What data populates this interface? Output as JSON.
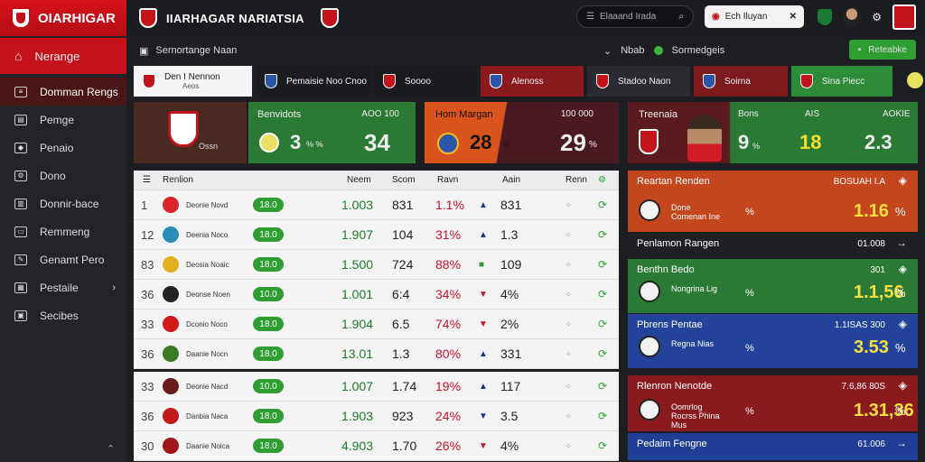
{
  "brand": {
    "title": "OIARHIGAR"
  },
  "sidebar": {
    "primary": "Nerange",
    "items": [
      {
        "label": "Domman Rengs",
        "icon": "list-icon",
        "active": true
      },
      {
        "label": "Pemge",
        "icon": "doc-icon"
      },
      {
        "label": "Penaio",
        "icon": "shield-icon"
      },
      {
        "label": "Dono",
        "icon": "gear-icon"
      },
      {
        "label": "Donnir-bace",
        "icon": "copy-icon"
      },
      {
        "label": "Remmeng",
        "icon": "card-icon"
      },
      {
        "label": "Genamt Pero",
        "icon": "pen-icon"
      },
      {
        "label": "Pestaile",
        "icon": "chart-icon",
        "chevron": true
      },
      {
        "label": "Secibes",
        "icon": "tag-icon"
      }
    ]
  },
  "topbar": {
    "title": "IIARHAGAR NARIATSIA",
    "search_placeholder": "Elaaand Irada",
    "match_label": "Ech Iluyan"
  },
  "subbar": {
    "left": "Sernortange Naan",
    "mid1": "Nbab",
    "mid2": "Sormedgeis",
    "cta": "Reteabke"
  },
  "tabs": [
    {
      "label": "Den I Nennon",
      "sub": "Aeos",
      "bg": "#f4f4f4",
      "fg": "#222"
    },
    {
      "label": "Pemaisie Noo Cnoo",
      "bg": "#1a1b1f",
      "fg": "#eee"
    },
    {
      "label": "Soooo",
      "bg": "#1a1b1f",
      "fg": "#eee"
    },
    {
      "label": "Alenoss",
      "bg": "#8b1a1e",
      "fg": "#eee"
    },
    {
      "label": "Stadoo Naon",
      "bg": "#2a2b30",
      "fg": "#eee"
    },
    {
      "label": "Soirna",
      "bg": "#7d1a1e",
      "fg": "#eee"
    },
    {
      "label": "Sina Piecc",
      "bg": "#2e8b3a",
      "fg": "#eee"
    }
  ],
  "cards": {
    "c1": {
      "label": "Ossn"
    },
    "c2": {
      "title": "Benvidots",
      "meta": "AOO 100",
      "score1": "3",
      "sep": "% %",
      "score2": "34"
    },
    "c3": {
      "title": "Hom Margan",
      "meta": "100 000",
      "score1": "28",
      "sep": "%",
      "score2": "29",
      "suffix": "%"
    },
    "c4": {
      "title": "Treenaia",
      "col1": "Bons",
      "col2": "AIS",
      "col3": "AOKIE",
      "v1": "9",
      "v1b": "%",
      "v2": "18",
      "v3": "2.3"
    }
  },
  "table": {
    "headers": [
      "Renlion",
      "Neem",
      "Scom",
      "Ravn",
      "Aain",
      "Renn"
    ],
    "rows": [
      {
        "rank": "1",
        "logo": "#d9262c",
        "name": "Deonie Novd",
        "pill": "18.0",
        "c1": "1.003",
        "c2": "831",
        "c3": "1.1%",
        "c3c": "#c8102e",
        "arrow": "▲",
        "arrowc": "#1a3a8a",
        "c4": "831"
      },
      {
        "rank": "12",
        "logo": "#2a8ab8",
        "name": "Deenia Noco",
        "pill": "18.0",
        "c1": "1.907",
        "c2": "104",
        "c3": "31%",
        "c3c": "#c8102e",
        "arrow": "▲",
        "arrowc": "#1a3a8a",
        "c4": "1.3"
      },
      {
        "rank": "83",
        "logo": "#e0b01e",
        "name": "Deosia Noaic",
        "pill": "18.0",
        "c1": "1.500",
        "c2": "724",
        "c3": "88%",
        "c3c": "#c8102e",
        "arrow": "■",
        "arrowc": "#2e9e33",
        "c4": "109"
      },
      {
        "rank": "36",
        "logo": "#222222",
        "name": "Deonse Noen",
        "pill": "10.0",
        "c1": "1.001",
        "c2": "6:4",
        "c3": "34%",
        "c3c": "#c8102e",
        "arrow": "▼",
        "arrowc": "#c8102e",
        "c4": "4%"
      },
      {
        "rank": "33",
        "logo": "#d11a1a",
        "name": "Dconio Noco",
        "pill": "18.0",
        "c1": "1.904",
        "c2": "6.5",
        "c3": "74%",
        "c3c": "#c8102e",
        "arrow": "▼",
        "arrowc": "#c8102e",
        "c4": "2%"
      },
      {
        "rank": "36",
        "logo": "#3a7a2a",
        "name": "Daanie Nocn",
        "pill": "18.0",
        "c1": "13.01",
        "c2": "1.3",
        "c3": "80%",
        "c3c": "#c8102e",
        "arrow": "▲",
        "arrowc": "#1a3a8a",
        "c4": "331"
      }
    ],
    "rows2": [
      {
        "rank": "33",
        "logo": "#6a1a1a",
        "name": "Deonie Nacd",
        "pill": "10.0",
        "c1": "1.007",
        "c2": "1.74",
        "c3": "19%",
        "c3c": "#c8102e",
        "arrow": "▲",
        "arrowc": "#1a3a8a",
        "c4": "117"
      },
      {
        "rank": "36",
        "logo": "#c11a1a",
        "name": "Danbia Naca",
        "pill": "18.0",
        "c1": "1.903",
        "c2": "923",
        "c3": "24%",
        "c3c": "#c8102e",
        "arrow": "▼",
        "arrowc": "#1a3a8a",
        "c4": "3.5"
      },
      {
        "rank": "30",
        "logo": "#a1161c",
        "name": "Daanie Noica",
        "pill": "18.0",
        "c1": "4.903",
        "c2": "1.70",
        "c3": "26%",
        "c3c": "#c8102e",
        "arrow": "▼",
        "arrowc": "#c8102e",
        "c4": "4%"
      }
    ]
  },
  "panels": [
    {
      "bg": "#c4461c",
      "title": "Reartan Renden",
      "meta": "BOSUAH I.A",
      "name": "Done Comenan Ine",
      "mid": "%",
      "value": "1.16",
      "unit": "%"
    },
    {
      "bg": "#1f2024",
      "title": "Penlamon Rangen",
      "meta": "01.008"
    },
    {
      "bg": "#2a7a35",
      "title": "Benthn Bedo",
      "meta": "301",
      "name": "Nongrina Lig",
      "mid": "%",
      "value": "1.1,56",
      "unit": "%"
    },
    {
      "bg": "#23439a",
      "title": "Pbrens Pentae",
      "meta": "1.1ISAS 300",
      "name": "Regna Nias",
      "mid": "%",
      "value": "3.53",
      "unit": "%"
    },
    {
      "bg": "#8b1a1e",
      "title": "Rlenron Nenotde",
      "meta": "7.6,86 80S",
      "name": "Oomrlog Rocrss Phina Mus",
      "mid": "%",
      "value": "1.31,36",
      "unit": "%"
    },
    {
      "bg": "#1e3f95",
      "title": "Pedaim Fengne",
      "meta": "61.006"
    }
  ]
}
